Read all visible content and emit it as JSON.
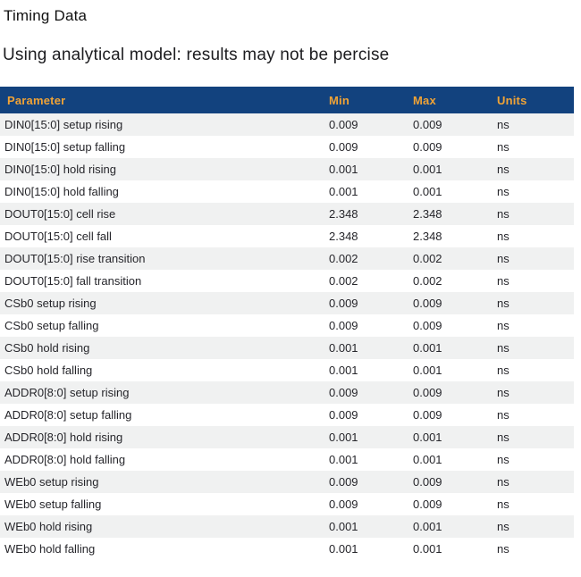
{
  "page": {
    "title": "Timing Data",
    "subtitle": "Using analytical model: results may not be percise"
  },
  "colors": {
    "header_bg": "#12427e",
    "header_text": "#f0a336",
    "row_alt_bg": "#f0f1f1",
    "row_bg": "#ffffff",
    "body_text": "#26262b",
    "title_text": "#111111"
  },
  "table": {
    "columns": [
      "Parameter",
      "Min",
      "Max",
      "Units"
    ],
    "rows": [
      {
        "parameter": "DIN0[15:0] setup rising",
        "min": "0.009",
        "max": "0.009",
        "units": "ns"
      },
      {
        "parameter": "DIN0[15:0] setup falling",
        "min": "0.009",
        "max": "0.009",
        "units": "ns"
      },
      {
        "parameter": "DIN0[15:0] hold rising",
        "min": "0.001",
        "max": "0.001",
        "units": "ns"
      },
      {
        "parameter": "DIN0[15:0] hold falling",
        "min": "0.001",
        "max": "0.001",
        "units": "ns"
      },
      {
        "parameter": "DOUT0[15:0] cell rise",
        "min": "2.348",
        "max": "2.348",
        "units": "ns"
      },
      {
        "parameter": "DOUT0[15:0] cell fall",
        "min": "2.348",
        "max": "2.348",
        "units": "ns"
      },
      {
        "parameter": "DOUT0[15:0] rise transition",
        "min": "0.002",
        "max": "0.002",
        "units": "ns"
      },
      {
        "parameter": "DOUT0[15:0] fall transition",
        "min": "0.002",
        "max": "0.002",
        "units": "ns"
      },
      {
        "parameter": "CSb0 setup rising",
        "min": "0.009",
        "max": "0.009",
        "units": "ns"
      },
      {
        "parameter": "CSb0 setup falling",
        "min": "0.009",
        "max": "0.009",
        "units": "ns"
      },
      {
        "parameter": "CSb0 hold rising",
        "min": "0.001",
        "max": "0.001",
        "units": "ns"
      },
      {
        "parameter": "CSb0 hold falling",
        "min": "0.001",
        "max": "0.001",
        "units": "ns"
      },
      {
        "parameter": "ADDR0[8:0] setup rising",
        "min": "0.009",
        "max": "0.009",
        "units": "ns"
      },
      {
        "parameter": "ADDR0[8:0] setup falling",
        "min": "0.009",
        "max": "0.009",
        "units": "ns"
      },
      {
        "parameter": "ADDR0[8:0] hold rising",
        "min": "0.001",
        "max": "0.001",
        "units": "ns"
      },
      {
        "parameter": "ADDR0[8:0] hold falling",
        "min": "0.001",
        "max": "0.001",
        "units": "ns"
      },
      {
        "parameter": "WEb0 setup rising",
        "min": "0.009",
        "max": "0.009",
        "units": "ns"
      },
      {
        "parameter": "WEb0 setup falling",
        "min": "0.009",
        "max": "0.009",
        "units": "ns"
      },
      {
        "parameter": "WEb0 hold rising",
        "min": "0.001",
        "max": "0.001",
        "units": "ns"
      },
      {
        "parameter": "WEb0 hold falling",
        "min": "0.001",
        "max": "0.001",
        "units": "ns"
      }
    ]
  }
}
